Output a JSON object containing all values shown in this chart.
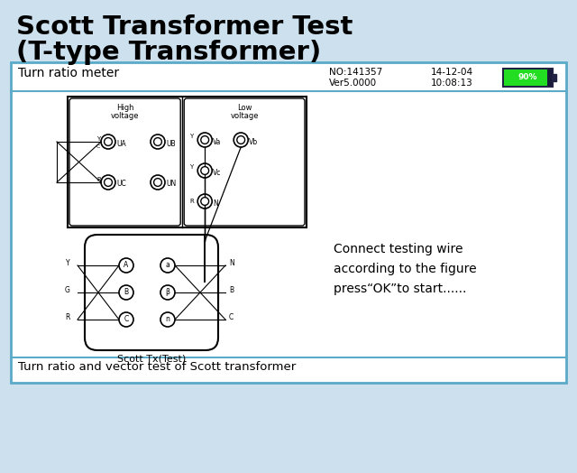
{
  "title_line1": "Scott Transformer Test",
  "title_line2": "(T-type Transformer)",
  "bg_top": "#cce0ee",
  "panel_border": "#5aaac8",
  "meter_label": "Turn ratio meter",
  "no_label": "NO:141357",
  "ver_label": "Ver5.0000",
  "date_label": "14-12-04",
  "time_label": "10:08:13",
  "battery_pct": "90%",
  "battery_fill": "#22dd22",
  "connect_text_1": "Connect testing wire",
  "connect_text_2": "according to the figure",
  "connect_text_3": "press“OK”to start......",
  "bottom_label": "Turn ratio and vector test of Scott transformer",
  "hv_label1": "High",
  "hv_label2": "voltage",
  "lv_label1": "Low",
  "lv_label2": "voltage",
  "transformer_label": "Scott Tx(Test)"
}
